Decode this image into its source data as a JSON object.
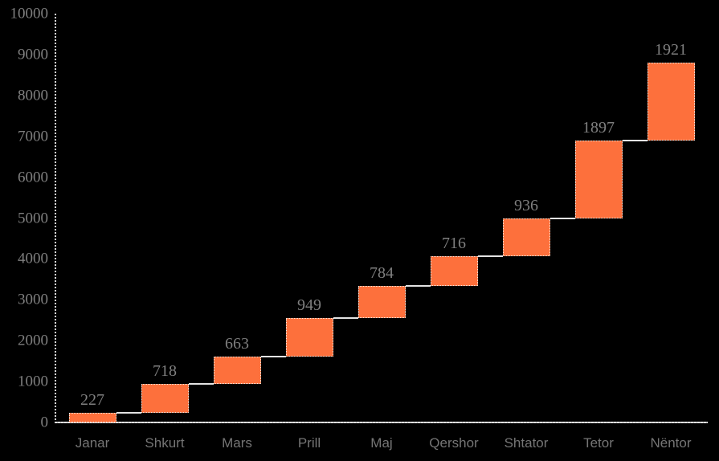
{
  "chart_data": {
    "type": "bar",
    "subtype": "waterfall",
    "title": "",
    "xlabel": "",
    "ylabel": "",
    "categories": [
      "Janar",
      "Shkurt",
      "Mars",
      "Prill",
      "Maj",
      "Qershor",
      "Shtator",
      "Tetor",
      "Nëntor"
    ],
    "values": [
      227,
      718,
      663,
      949,
      784,
      716,
      936,
      1897,
      1921
    ],
    "data_labels": [
      "227",
      "718",
      "663",
      "949",
      "784",
      "716",
      "936",
      "1897",
      "1921"
    ],
    "cumulative_totals": [
      227,
      945,
      1608,
      2557,
      3341,
      4057,
      4993,
      6890,
      8811
    ],
    "ylim": [
      0,
      10000
    ],
    "yticks": [
      0,
      1000,
      2000,
      3000,
      4000,
      5000,
      6000,
      7000,
      8000,
      9000,
      10000
    ],
    "grid": false,
    "legend": false,
    "connectors": true,
    "colors": {
      "background": "#000000",
      "bar_fill": "#FD703C",
      "bar_border": "#F2EAE4",
      "connector": "#E3E3E3",
      "axis_line": "#D9D9D9",
      "y_tick_label": "#7F7F7F",
      "data_label": "#7F7F7F",
      "category_label": "#757575"
    }
  }
}
